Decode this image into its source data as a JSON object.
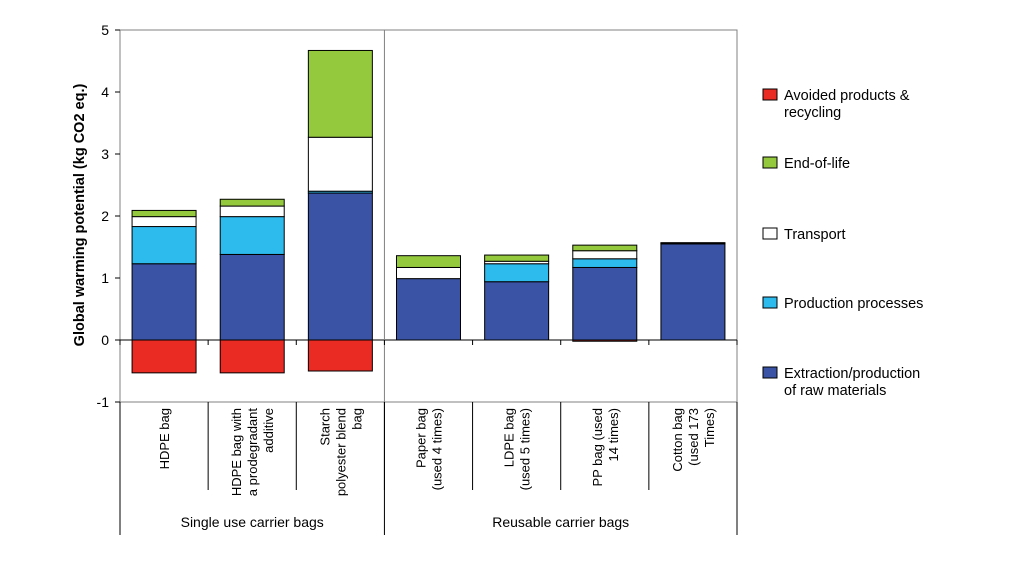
{
  "chart_data": {
    "type": "bar",
    "stacked": true,
    "title": "",
    "xlabel": "",
    "ylabel": "Global warming potential (kg CO2 eq.)",
    "ylim": [
      -1,
      5
    ],
    "yticks": [
      "5",
      "4",
      "3",
      "2",
      "1",
      "0",
      "-1"
    ],
    "yticks_values": [
      5,
      4,
      3,
      2,
      1,
      0,
      -1
    ],
    "categories": [
      [
        "HDPE bag"
      ],
      [
        "HDPE bag with",
        "a prodegradant",
        "additive"
      ],
      [
        "Starch",
        "polyester blend",
        "bag"
      ],
      [
        "Paper bag",
        "(used 4 times)"
      ],
      [
        "LDPE bag",
        "(used 5 times)"
      ],
      [
        "PP bag (used",
        "14 times)"
      ],
      [
        "Cotton bag",
        "(used 173",
        "Times)"
      ]
    ],
    "groups": [
      {
        "label": "Single use carrier bags",
        "span": [
          0,
          2
        ]
      },
      {
        "label": "Reusable carrier bags",
        "span": [
          3,
          6
        ]
      }
    ],
    "series": [
      {
        "name": "Extraction/production of raw materials",
        "legend_lines": [
          "Extraction/production",
          "of raw materials"
        ],
        "color": "#3a53a4",
        "values": [
          1.23,
          1.38,
          2.37,
          0.99,
          0.94,
          1.17,
          1.55
        ]
      },
      {
        "name": "Production processes",
        "legend_lines": [
          "Production processes"
        ],
        "color": "#2dbbee",
        "values": [
          0.6,
          0.61,
          0.03,
          0.0,
          0.29,
          0.14,
          0.01
        ]
      },
      {
        "name": "Transport",
        "legend_lines": [
          "Transport"
        ],
        "color": "#ffffff",
        "values": [
          0.16,
          0.17,
          0.87,
          0.18,
          0.04,
          0.13,
          0.0
        ]
      },
      {
        "name": "End-of-life",
        "legend_lines": [
          "End-of-life"
        ],
        "color": "#95c93d",
        "values": [
          0.1,
          0.11,
          1.4,
          0.19,
          0.1,
          0.09,
          0.01
        ]
      },
      {
        "name": "Avoided products & recycling",
        "legend_lines": [
          "Avoided products &",
          "recycling"
        ],
        "color": "#ea2b24",
        "values": [
          -0.53,
          -0.53,
          -0.5,
          0.0,
          0.0,
          -0.02,
          0.0
        ]
      }
    ],
    "legend_order": [
      4,
      3,
      2,
      1,
      0
    ],
    "legend_position": "right"
  }
}
